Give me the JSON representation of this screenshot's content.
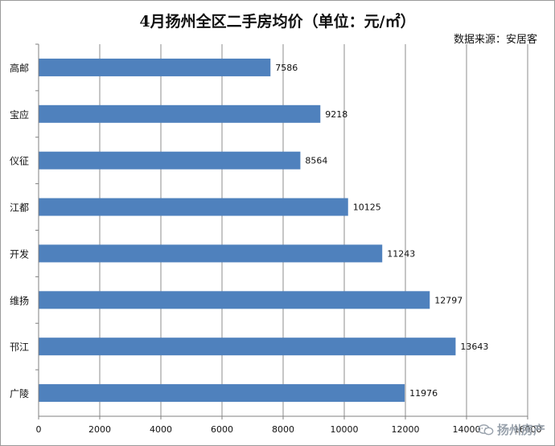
{
  "chart_data": {
    "type": "bar",
    "orientation": "horizontal",
    "title": "4月扬州全区二手房均价（单位：元/㎡）",
    "source_note": "数据来源：安居客",
    "categories": [
      "高邮",
      "宝应",
      "仪征",
      "江都",
      "开发",
      "维扬",
      "邗江",
      "广陵"
    ],
    "values": [
      7586,
      9218,
      8564,
      10125,
      11243,
      12797,
      13643,
      11976
    ],
    "xlim": [
      0,
      16000
    ],
    "xticks": [
      0,
      2000,
      4000,
      6000,
      8000,
      10000,
      12000,
      14000,
      16000
    ],
    "grid": "vertical",
    "bar_color": "#4f81bd"
  },
  "watermark": {
    "text": "扬州房产",
    "icon": "wechat-icon"
  }
}
